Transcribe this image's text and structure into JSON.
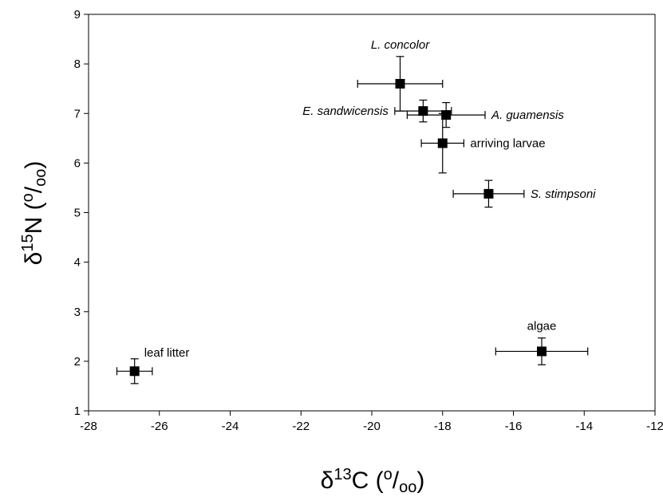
{
  "chart_data": {
    "type": "scatter",
    "title": "",
    "xlabel": {
      "prefix": "δ",
      "sup": "13",
      "main": "C (",
      "permil_sup": "o",
      "slash": "/",
      "permil_sub": "oo",
      "close": ")"
    },
    "ylabel": {
      "prefix": "δ",
      "sup": "15",
      "main": "N (",
      "permil_sup": "o",
      "slash": "/",
      "permil_sub": "oo",
      "close": ")"
    },
    "xlim": [
      -28,
      -12
    ],
    "ylim": [
      1,
      9
    ],
    "xticks": [
      -28,
      -26,
      -24,
      -22,
      -20,
      -18,
      -16,
      -14,
      -12
    ],
    "yticks": [
      1,
      2,
      3,
      4,
      5,
      6,
      7,
      8,
      9
    ],
    "grid": false,
    "marker": "filled-square",
    "marker_color": "#000000",
    "points": [
      {
        "label": "L. concolor",
        "italic": true,
        "x": -19.2,
        "y": 7.6,
        "xerr": 1.2,
        "yerr": 0.55,
        "label_pos": "above"
      },
      {
        "label": "E. sandwicensis",
        "italic": true,
        "x": -18.55,
        "y": 7.05,
        "xerr": 0.8,
        "yerr": 0.22,
        "label_pos": "left"
      },
      {
        "label": "A. guamensis",
        "italic": true,
        "x": -17.9,
        "y": 6.97,
        "xerr": 1.1,
        "yerr": 0.25,
        "label_pos": "right"
      },
      {
        "label": "arriving larvae",
        "italic": false,
        "x": -18.0,
        "y": 6.4,
        "xerr": 0.6,
        "yerr": 0.6,
        "label_pos": "right"
      },
      {
        "label": "S. stimpsoni",
        "italic": true,
        "x": -16.7,
        "y": 5.38,
        "xerr": 1.0,
        "yerr": 0.27,
        "label_pos": "right"
      },
      {
        "label": "algae",
        "italic": false,
        "x": -15.2,
        "y": 2.2,
        "xerr": 1.3,
        "yerr": 0.27,
        "label_pos": "above"
      },
      {
        "label": "leaf litter",
        "italic": false,
        "x": -26.7,
        "y": 1.8,
        "xerr": 0.5,
        "yerr": 0.25,
        "label_pos": "above-right"
      }
    ]
  }
}
